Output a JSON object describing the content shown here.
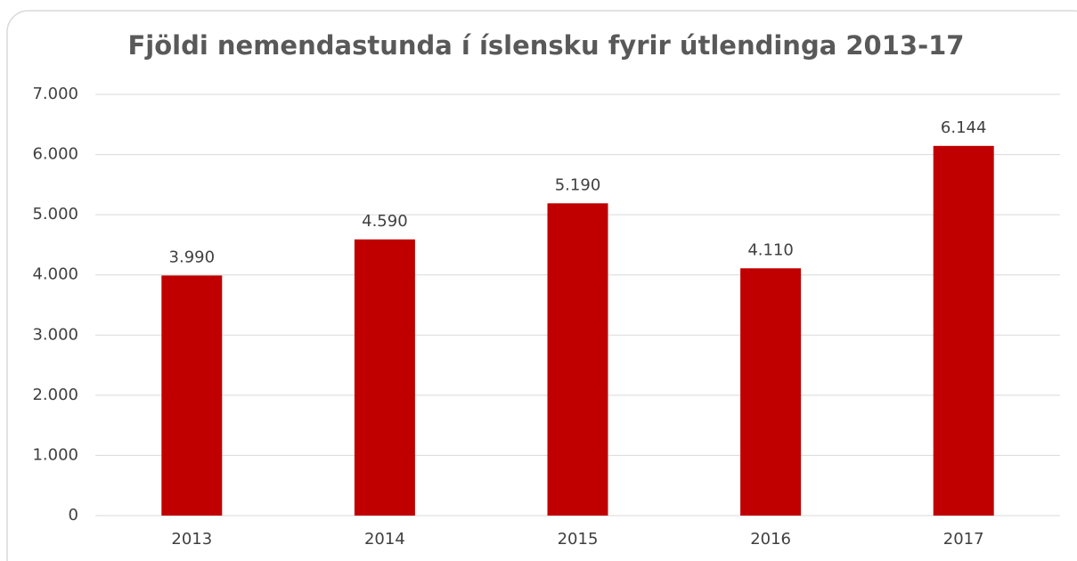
{
  "chart_data": {
    "type": "bar",
    "title": "Fjöldi nemendastunda í íslensku fyrir útlendinga 2013-17",
    "categories": [
      "2013",
      "2014",
      "2015",
      "2016",
      "2017"
    ],
    "values": [
      3990,
      4590,
      5190,
      4110,
      6144
    ],
    "value_labels": [
      "3.990",
      "4.590",
      "5.190",
      "4.110",
      "6.144"
    ],
    "color": "#c00000",
    "ylim": [
      0,
      7000
    ],
    "yticks": [
      0,
      {
        "value": 1000,
        "label": "1.000"
      },
      {
        "value": 2000,
        "label": "2.000"
      },
      {
        "value": 3000,
        "label": "3.000"
      },
      {
        "value": 4000,
        "label": "4.000"
      },
      {
        "value": 5000,
        "label": "5.000"
      },
      {
        "value": 6000,
        "label": "6.000"
      },
      {
        "value": 7000,
        "label": "7.000"
      }
    ],
    "grid": true
  }
}
